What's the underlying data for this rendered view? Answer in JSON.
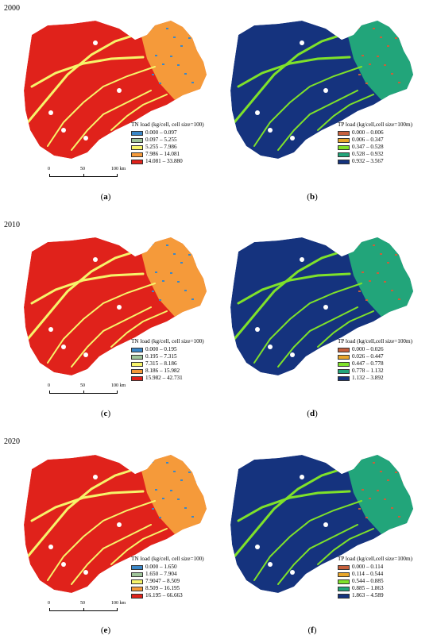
{
  "years": [
    "2000",
    "2010",
    "2020"
  ],
  "tn_colors": [
    "#3a87c8",
    "#9fc59a",
    "#f7f46a",
    "#f59a3a",
    "#e0221b"
  ],
  "tp_colors": [
    "#c6603c",
    "#e8a62a",
    "#7fe22a",
    "#22a57a",
    "#15337e"
  ],
  "panels": [
    {
      "id": "a",
      "caption": "a",
      "kind": "tn",
      "legend_title": "TN load (kg/cell, cell size=100)",
      "classes": [
        "0.000 – 0.097",
        "0.097 – 5.255",
        "5.255 – 7.986",
        "7.986 – 14.081",
        "14.081 – 33.880"
      ],
      "scale": [
        "0",
        "50",
        "100 km"
      ]
    },
    {
      "id": "b",
      "caption": "b",
      "kind": "tp",
      "legend_title": "TP load (kg/cell,cell size=100m)",
      "classes": [
        "0.000 – 0.006",
        "0.006 – 0.347",
        "0.347 – 0.528",
        "0.528 – 0.932",
        "0.932 – 3.567"
      ]
    },
    {
      "id": "c",
      "caption": "c",
      "kind": "tn",
      "legend_title": "TN load (kg/cell, cell size=100)",
      "classes": [
        "0.000 – 0.195",
        "0.195 – 7.315",
        "7.315 – 8.186",
        "8.186 – 15.982",
        "15.982 – 42.731"
      ],
      "scale": [
        "0",
        "50",
        "100 km"
      ]
    },
    {
      "id": "d",
      "caption": "d",
      "kind": "tp",
      "legend_title": "TP load (kg/cell,cell size=100m)",
      "classes": [
        "0.000 – 0.026",
        "0.026 – 0.447",
        "0.447 – 0.778",
        "0.778 – 1.132",
        "1.132 – 3.892"
      ]
    },
    {
      "id": "e",
      "caption": "e",
      "kind": "tn",
      "legend_title": "TN load (kg/cell, cell size=100)",
      "classes": [
        "0.000 – 1.650",
        "1.650 – 7.904",
        "7.9047 – 8.509",
        "8.509 – 16.195",
        "16.195 – 66.663"
      ],
      "scale": [
        "0",
        "50",
        "100 km"
      ]
    },
    {
      "id": "f",
      "caption": "f",
      "kind": "tp",
      "legend_title": "TP load (kg/cell,cell size=100m)",
      "classes": [
        "0.000 – 0.114",
        "0.114 – 0.544",
        "0.544 – 0.885",
        "0.885 – 1.863",
        "1.863 – 4.589"
      ]
    }
  ]
}
